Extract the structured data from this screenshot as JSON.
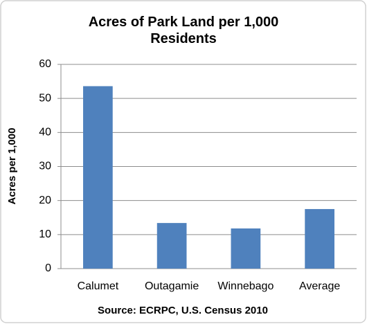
{
  "chart_data": {
    "type": "bar",
    "title": "Acres of Park Land per 1,000 Residents",
    "y_label": "Acres per 1,000",
    "source": "Source:  ECRPC, U.S. Census 2010",
    "categories": [
      "Calumet",
      "Outagamie",
      "Winnebago",
      "Average"
    ],
    "values": [
      53.6,
      13.4,
      11.8,
      17.5
    ],
    "color": "#4f81bd",
    "ylim": [
      0,
      60
    ],
    "yticks": [
      0,
      10,
      20,
      30,
      40,
      50,
      60
    ],
    "grid": true
  }
}
